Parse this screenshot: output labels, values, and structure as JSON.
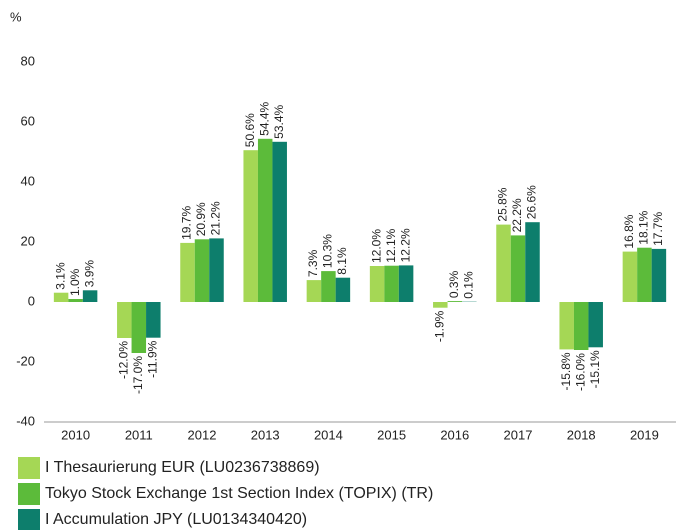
{
  "chart_data": {
    "type": "bar",
    "y_label": "%",
    "categories": [
      "2010",
      "2011",
      "2012",
      "2013",
      "2014",
      "2015",
      "2016",
      "2017",
      "2018",
      "2019"
    ],
    "series": [
      {
        "name": "I Thesaurierung EUR (LU0236738869)",
        "color": "#a5d755",
        "values": [
          3.1,
          -12.0,
          19.7,
          50.6,
          7.3,
          12.0,
          -1.9,
          25.8,
          -15.8,
          16.8
        ],
        "value_labels": [
          "3.1%",
          "-12.0%",
          "19.7%",
          "50.6%",
          "7.3%",
          "12.0%",
          "-1.9%",
          "25.8%",
          "-15.8%",
          "16.8%"
        ]
      },
      {
        "name": "Tokyo Stock Exchange 1st Section Index (TOPIX) (TR)",
        "color": "#5cbb3a",
        "values": [
          1.0,
          -17.0,
          20.9,
          54.4,
          10.3,
          12.1,
          0.3,
          22.2,
          -16.0,
          18.1
        ],
        "value_labels": [
          "1.0%",
          "-17.0%",
          "20.9%",
          "54.4%",
          "10.3%",
          "12.1%",
          "0.3%",
          "22.2%",
          "-16.0%",
          "18.1%"
        ]
      },
      {
        "name": "I Accumulation JPY (LU0134340420)",
        "color": "#0d7e6c",
        "values": [
          3.9,
          -11.9,
          21.2,
          53.4,
          8.1,
          12.2,
          0.1,
          26.6,
          -15.1,
          17.7
        ],
        "value_labels": [
          "3.9%",
          "-11.9%",
          "21.2%",
          "53.4%",
          "8.1%",
          "12.2%",
          "0.1%",
          "26.6%",
          "-15.1%",
          "17.7%"
        ]
      }
    ],
    "ylim": [
      -40,
      80
    ],
    "yticks": [
      -40,
      -20,
      0,
      20,
      40,
      60,
      80
    ]
  }
}
